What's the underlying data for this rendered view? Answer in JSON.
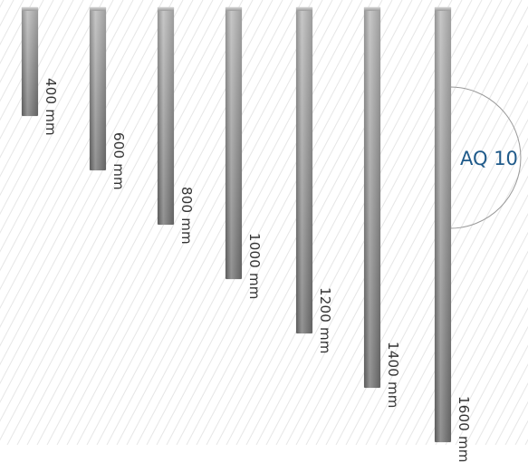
{
  "product": {
    "name": "AQ 10"
  },
  "colors": {
    "accent": "#1f5a8a",
    "bar_light": "#b5b5b5",
    "bar_dark": "#6e6e6e",
    "hatch": "#e6e6e6",
    "arc": "#9a9a9a"
  },
  "bars": [
    {
      "length_mm": 400,
      "label": "400 mm"
    },
    {
      "length_mm": 600,
      "label": "600 mm"
    },
    {
      "length_mm": 800,
      "label": "800 mm"
    },
    {
      "length_mm": 1000,
      "label": "1000 mm"
    },
    {
      "length_mm": 1200,
      "label": "1200 mm"
    },
    {
      "length_mm": 1400,
      "label": "1400 mm"
    },
    {
      "length_mm": 1600,
      "label": "1600 mm"
    }
  ]
}
